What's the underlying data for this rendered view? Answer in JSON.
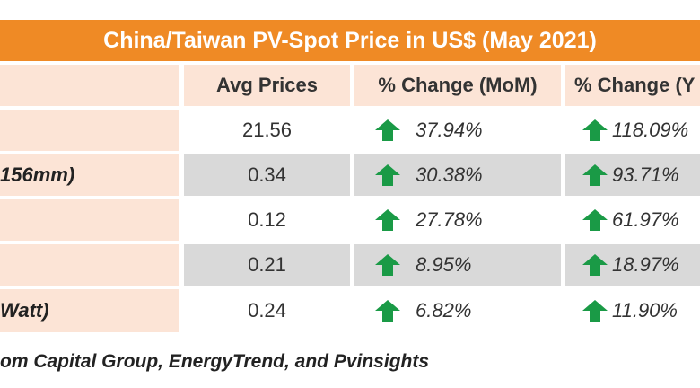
{
  "table": {
    "title": "China/Taiwan PV-Spot Price in US$ (May 2021)",
    "headers": [
      "",
      "Avg Prices",
      "% Change (MoM)",
      "% Change (Y"
    ],
    "rows": [
      {
        "label": "",
        "price": "21.56",
        "mom": "37.94%",
        "yoy": "118.09%"
      },
      {
        "label": "156mm)",
        "price": "0.34",
        "mom": "30.38%",
        "yoy": "93.71%"
      },
      {
        "label": "",
        "price": "0.12",
        "mom": "27.78%",
        "yoy": "61.97%"
      },
      {
        "label": "",
        "price": "0.21",
        "mom": "8.95%",
        "yoy": "18.97%"
      },
      {
        "label": "Watt)",
        "price": "0.24",
        "mom": "6.82%",
        "yoy": "11.90%"
      }
    ],
    "arrow_icon": "up-arrow-icon",
    "arrow_color": "#1a9a46",
    "header_bg": "#ef8a25",
    "row_bg_light": "#fce4d6",
    "row_bg_gray": "#d9d9d9"
  },
  "footer": {
    "source_text": "om Capital Group, EnergyTrend, and Pvinsights"
  }
}
